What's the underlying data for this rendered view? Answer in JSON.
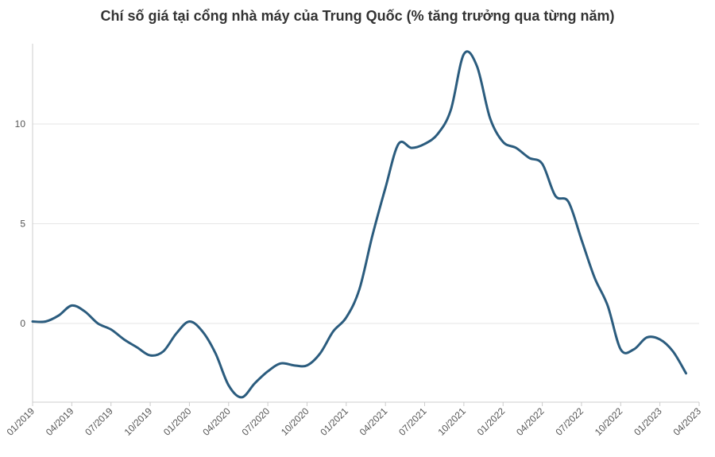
{
  "chart_data": {
    "type": "line",
    "title": "Chí số giá tại cổng nhà máy của Trung Quốc (% tăng trưởng qua từng năm)",
    "xlabel": "",
    "ylabel": "",
    "x": [
      "2019-01",
      "2019-02",
      "2019-03",
      "2019-04",
      "2019-05",
      "2019-06",
      "2019-07",
      "2019-08",
      "2019-09",
      "2019-10",
      "2019-11",
      "2019-12",
      "2020-01",
      "2020-02",
      "2020-03",
      "2020-04",
      "2020-05",
      "2020-06",
      "2020-07",
      "2020-08",
      "2020-09",
      "2020-10",
      "2020-11",
      "2020-12",
      "2021-01",
      "2021-02",
      "2021-03",
      "2021-04",
      "2021-05",
      "2021-06",
      "2021-07",
      "2021-08",
      "2021-09",
      "2021-10",
      "2021-11",
      "2021-12",
      "2022-01",
      "2022-02",
      "2022-03",
      "2022-04",
      "2022-05",
      "2022-06",
      "2022-07",
      "2022-08",
      "2022-09",
      "2022-10",
      "2022-11",
      "2022-12",
      "2023-01",
      "2023-02",
      "2023-03"
    ],
    "series": [
      {
        "values": [
          0.1,
          0.1,
          0.4,
          0.9,
          0.6,
          0.0,
          -0.3,
          -0.8,
          -1.2,
          -1.6,
          -1.4,
          -0.5,
          0.1,
          -0.4,
          -1.5,
          -3.1,
          -3.7,
          -3.0,
          -2.4,
          -2.0,
          -2.1,
          -2.1,
          -1.5,
          -0.4,
          0.3,
          1.7,
          4.4,
          6.8,
          9.0,
          8.8,
          9.0,
          9.5,
          10.7,
          13.5,
          12.9,
          10.3,
          9.1,
          8.8,
          8.3,
          8.0,
          6.4,
          6.1,
          4.2,
          2.3,
          0.9,
          -1.3,
          -1.3,
          -0.7,
          -0.8,
          -1.4,
          -2.5
        ],
        "color": "#2b5c7e"
      }
    ],
    "xticks": [
      "01/2019",
      "04/2019",
      "07/2019",
      "10/2019",
      "01/2020",
      "04/2020",
      "07/2020",
      "10/2020",
      "01/2021",
      "04/2021",
      "07/2021",
      "10/2021",
      "01/2022",
      "04/2022",
      "07/2022",
      "10/2022",
      "01/2023",
      "04/2023"
    ],
    "yticks": [
      0,
      5,
      10
    ],
    "ylim": [
      -4,
      14
    ],
    "grid": true,
    "legend": "none"
  }
}
